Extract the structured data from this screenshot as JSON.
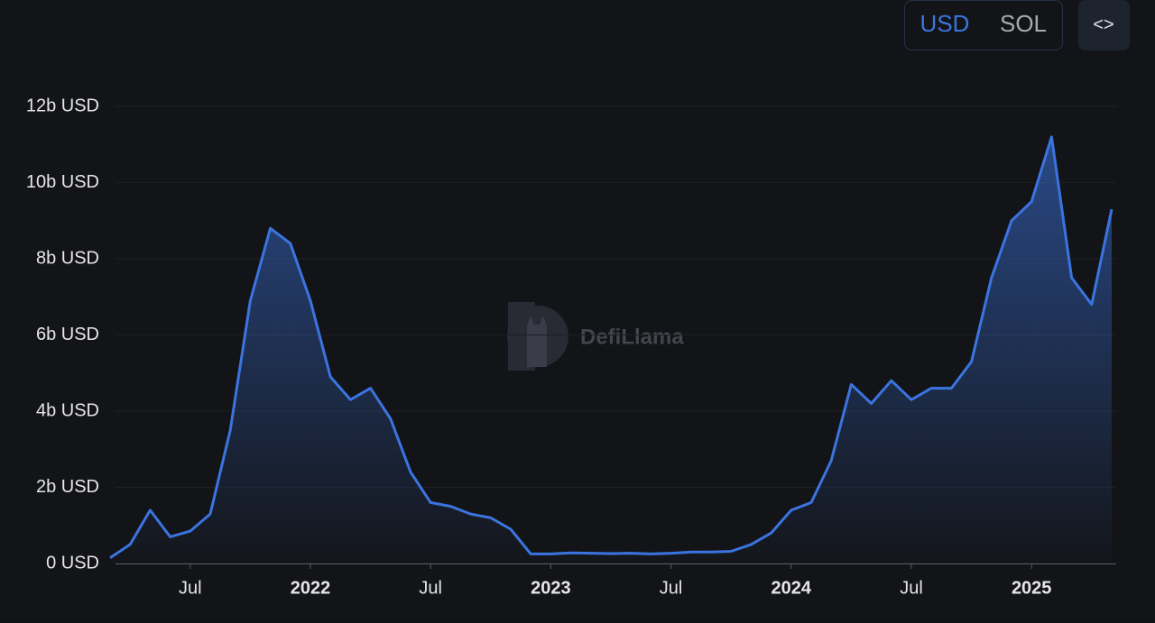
{
  "toggle": {
    "options": [
      "USD",
      "SOL"
    ],
    "active": 0,
    "embed": "<>"
  },
  "watermark": "DefiLlama",
  "chart_data": {
    "type": "area",
    "color": "#3b74e0",
    "x": [
      "2021-03",
      "2021-04",
      "2021-05",
      "2021-06",
      "2021-07",
      "2021-08",
      "2021-09",
      "2021-10",
      "2021-11",
      "2021-12",
      "2022-01",
      "2022-02",
      "2022-03",
      "2022-04",
      "2022-05",
      "2022-06",
      "2022-07",
      "2022-08",
      "2022-09",
      "2022-10",
      "2022-11",
      "2022-12",
      "2023-01",
      "2023-02",
      "2023-03",
      "2023-04",
      "2023-05",
      "2023-06",
      "2023-07",
      "2023-08",
      "2023-09",
      "2023-10",
      "2023-11",
      "2023-12",
      "2024-01",
      "2024-02",
      "2024-03",
      "2024-04",
      "2024-05",
      "2024-06",
      "2024-07",
      "2024-08",
      "2024-09",
      "2024-10",
      "2024-11",
      "2024-12",
      "2025-01",
      "2025-02",
      "2025-03",
      "2025-04",
      "2025-05"
    ],
    "values": [
      0.15,
      0.5,
      1.4,
      0.7,
      0.85,
      1.3,
      3.5,
      6.9,
      8.8,
      8.4,
      6.9,
      4.9,
      4.3,
      4.6,
      3.8,
      2.4,
      1.6,
      1.5,
      1.3,
      1.2,
      0.9,
      0.25,
      0.25,
      0.28,
      0.27,
      0.26,
      0.27,
      0.25,
      0.27,
      0.3,
      0.3,
      0.32,
      0.5,
      0.8,
      1.4,
      1.6,
      2.7,
      4.7,
      4.2,
      4.8,
      4.3,
      4.6,
      4.6,
      5.3,
      7.5,
      9.0,
      9.5,
      11.2,
      7.5,
      6.8,
      9.3
    ],
    "xlim": [
      "2021-03",
      "2025-05"
    ],
    "xticks": [
      {
        "value": "2021-07",
        "label": "Jul"
      },
      {
        "value": "2022-01",
        "label": "2022"
      },
      {
        "value": "2022-07",
        "label": "Jul"
      },
      {
        "value": "2023-01",
        "label": "2023"
      },
      {
        "value": "2023-07",
        "label": "Jul"
      },
      {
        "value": "2024-01",
        "label": "2024"
      },
      {
        "value": "2024-07",
        "label": "Jul"
      },
      {
        "value": "2025-01",
        "label": "2025"
      }
    ],
    "ylim": [
      0,
      12
    ],
    "yticks": [
      {
        "value": 0,
        "label": "0 USD"
      },
      {
        "value": 2,
        "label": "2b USD"
      },
      {
        "value": 4,
        "label": "4b USD"
      },
      {
        "value": 6,
        "label": "6b USD"
      },
      {
        "value": 8,
        "label": "8b USD"
      },
      {
        "value": 10,
        "label": "10b USD"
      },
      {
        "value": 12,
        "label": "12b USD"
      }
    ],
    "grid": true
  }
}
